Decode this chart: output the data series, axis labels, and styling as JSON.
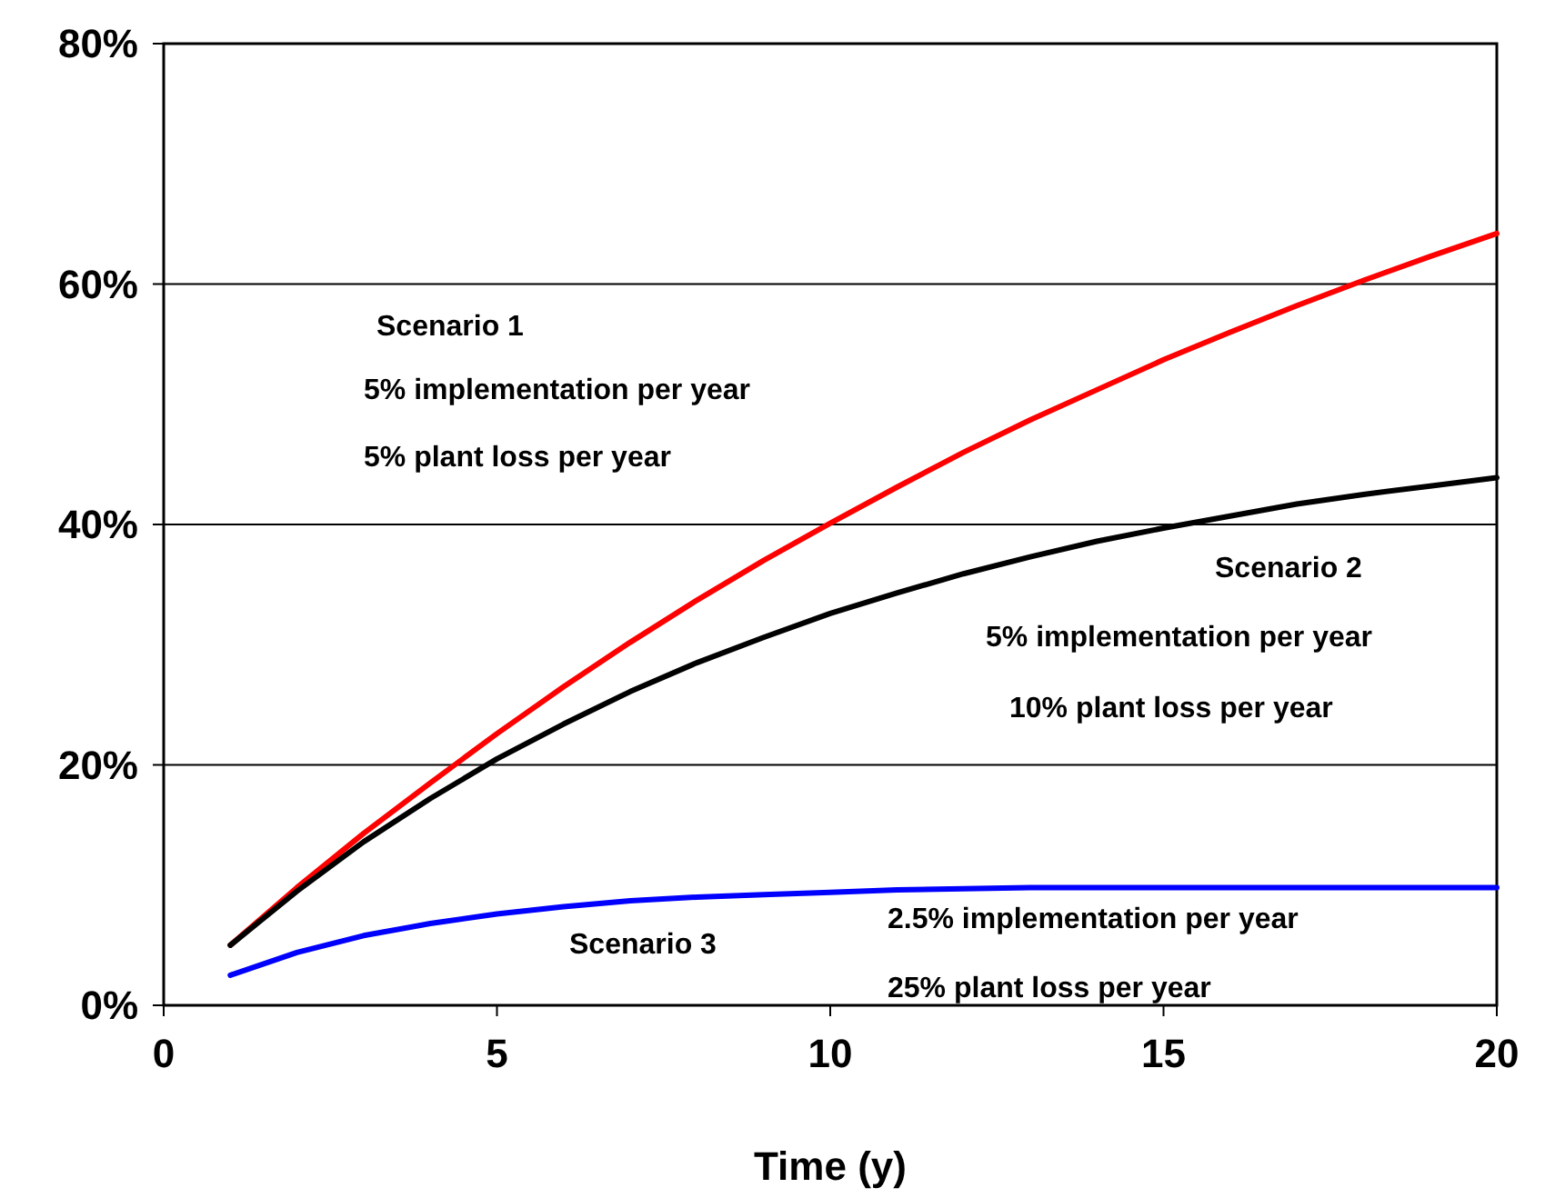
{
  "chart_data": {
    "type": "line",
    "xlabel": "Time (y)",
    "x": [
      1,
      2,
      3,
      4,
      5,
      6,
      7,
      8,
      9,
      10,
      11,
      12,
      13,
      14,
      15,
      16,
      17,
      18,
      19,
      20
    ],
    "series": [
      {
        "color": "#ff0000",
        "values": [
          5.0,
          9.8,
          14.3,
          18.5,
          22.6,
          26.5,
          30.2,
          33.7,
          37.0,
          40.1,
          43.1,
          46.0,
          48.7,
          51.2,
          53.7,
          56.0,
          58.2,
          60.3,
          62.3,
          64.2
        ]
      },
      {
        "color": "#000000",
        "values": [
          5.0,
          9.5,
          13.6,
          17.2,
          20.5,
          23.4,
          26.1,
          28.5,
          30.6,
          32.6,
          34.3,
          35.9,
          37.3,
          38.6,
          39.7,
          40.7,
          41.7,
          42.5,
          43.2,
          43.9
        ]
      },
      {
        "color": "#0000ff",
        "values": [
          2.5,
          4.4,
          5.8,
          6.8,
          7.6,
          8.2,
          8.7,
          9.0,
          9.2,
          9.4,
          9.6,
          9.7,
          9.8,
          9.8,
          9.8,
          9.8,
          9.8,
          9.8,
          9.8,
          9.8
        ]
      }
    ],
    "xlim": [
      0,
      20
    ],
    "xticks": [
      0,
      5,
      10,
      15,
      20
    ],
    "ylim": [
      0,
      80
    ],
    "yticks": [
      {
        "value": 0,
        "label": "0%"
      },
      {
        "value": 20,
        "label": "20%"
      },
      {
        "value": 40,
        "label": "40%"
      },
      {
        "value": 60,
        "label": "60%"
      },
      {
        "value": 80,
        "label": "80%"
      }
    ],
    "grid": "y",
    "marker": "none",
    "line_style": "solid",
    "annotations": [
      "Scenario 1",
      "5% implementation per year",
      "5% plant loss per year",
      "Scenario 2",
      "5% implementation per year",
      "10% plant loss per year",
      "Scenario 3",
      "2.5% implementation per year",
      "25% plant loss per year"
    ]
  }
}
